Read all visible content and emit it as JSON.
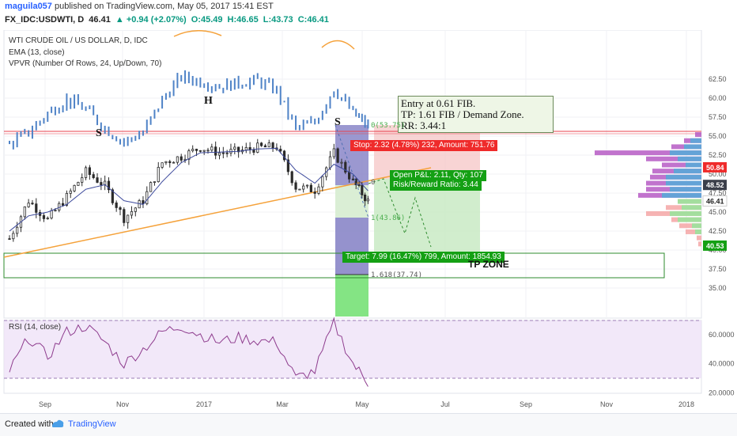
{
  "header": {
    "user": "maguila057",
    "published_text": "published on TradingView.com, May 05, 2017 15:41 EST",
    "symbol": "FX_IDC:USDWTI, D",
    "last": "46.41",
    "change": "▲ +0.94 (+2.07%)",
    "ohlc": [
      "O:45.49",
      "H:46.65",
      "L:43.73",
      "C:46.41"
    ]
  },
  "legend": {
    "title": "WTI CRUDE OIL / US DOLLAR, D, IDC",
    "ema": "EMA (13, close)",
    "vpvr": "VPVR (Number Of Rows, 24, Up/Down, 70)"
  },
  "annotations": {
    "note_lines": [
      "Entry at 0.61 FIB.",
      "TP: 1.61 FIB / Demand Zone.",
      "RR: 3.44:1"
    ],
    "left_shoulder": "S",
    "head": "H",
    "right_shoulder": "S",
    "stop_label": "Stop: 2.32 (4.78%) 232, Amount: 751.76",
    "pnl_label": "Open P&L: 2.11, Qty: 107",
    "rr_label": "Risk/Reward Ratio: 3.44",
    "target_label": "Target: 7.99 (16.47%) 799, Amount: 1854.93",
    "tp_zone": "TP ZONE",
    "fib_0": "0(53.75)",
    "fib_0b": "0",
    "fib_1": "1(43.86)",
    "fib_1618": "1.618(37.74)"
  },
  "price_axis": {
    "ticks": [
      "62.50",
      "60.00",
      "57.50",
      "55.00",
      "52.50",
      "50.00",
      "47.50",
      "45.00",
      "42.50",
      "40.00",
      "37.50",
      "35.00"
    ],
    "badges": [
      {
        "text": "50.84",
        "color": "#ef2b2b"
      },
      {
        "text": "48.52",
        "color": "#3b3f4a"
      },
      {
        "text": "46.41",
        "color": "#ffffff"
      },
      {
        "text": "40.53",
        "color": "#14a014"
      }
    ]
  },
  "rsi": {
    "label": "RSI (14, close)",
    "ticks": [
      "60.0000",
      "40.0000",
      "20.0000"
    ]
  },
  "time_axis": {
    "ticks": [
      "Sep",
      "Nov",
      "2017",
      "Mar",
      "May",
      "Jul",
      "Sep",
      "Nov",
      "2018"
    ]
  },
  "footer": {
    "created_with": "Created with",
    "brand": "TradingView"
  },
  "colors": {
    "candle": "#2b2b2b",
    "ema": "#3d4a9c",
    "trend": "#f5a23b",
    "resistance": "#e8404d",
    "demand_zone": "#2e8b2e",
    "overlay": "#4f83c7",
    "rsi": "#8e3c8e",
    "rsi_band": "#ede0f7",
    "stop_zone": "#f6c6c6",
    "target_zone": "#c5e8c1"
  },
  "chart_data": {
    "type": "candlestick",
    "title": "WTI CRUDE OIL / US DOLLAR, D, IDC",
    "ylim": [
      33,
      64
    ],
    "x": [
      "2016-08-15",
      "2016-08-29",
      "2016-09-12",
      "2016-09-26",
      "2016-10-10",
      "2016-10-24",
      "2016-11-07",
      "2016-11-21",
      "2016-12-05",
      "2016-12-19",
      "2017-01-02",
      "2017-01-16",
      "2017-01-30",
      "2017-02-13",
      "2017-02-27",
      "2017-03-13",
      "2017-03-27",
      "2017-04-10",
      "2017-04-24",
      "2017-05-05"
    ],
    "close": [
      41.5,
      46.5,
      44.0,
      47.0,
      50.3,
      48.5,
      44.2,
      46.5,
      51.5,
      52.3,
      53.5,
      52.8,
      53.0,
      53.5,
      53.6,
      48.3,
      47.9,
      52.8,
      49.0,
      46.41
    ],
    "ema_13": [
      42.5,
      44.5,
      45.0,
      46.0,
      48.0,
      48.6,
      46.5,
      46.0,
      49.0,
      51.5,
      52.8,
      52.9,
      53.0,
      53.3,
      53.4,
      50.5,
      48.8,
      51.3,
      50.0,
      47.8
    ],
    "overlay_line": [
      54.0,
      55.5,
      58.0,
      59.8,
      58.5,
      56.0,
      54.2,
      55.5,
      59.8,
      62.8,
      62.2,
      61.5,
      62.0,
      62.3,
      61.0,
      56.0,
      56.8,
      61.3,
      58.0,
      56.3
    ],
    "levels": {
      "resistance": 53.1,
      "stop": 50.84,
      "entry": 48.52,
      "target": 40.53,
      "fib_0": 53.75,
      "fib_1": 43.86,
      "fib_1618": 37.74
    },
    "rsi": [
      35,
      58,
      45,
      62,
      66,
      55,
      40,
      50,
      62,
      66,
      60,
      55,
      58,
      56,
      55,
      30,
      35,
      68,
      40,
      27
    ]
  }
}
